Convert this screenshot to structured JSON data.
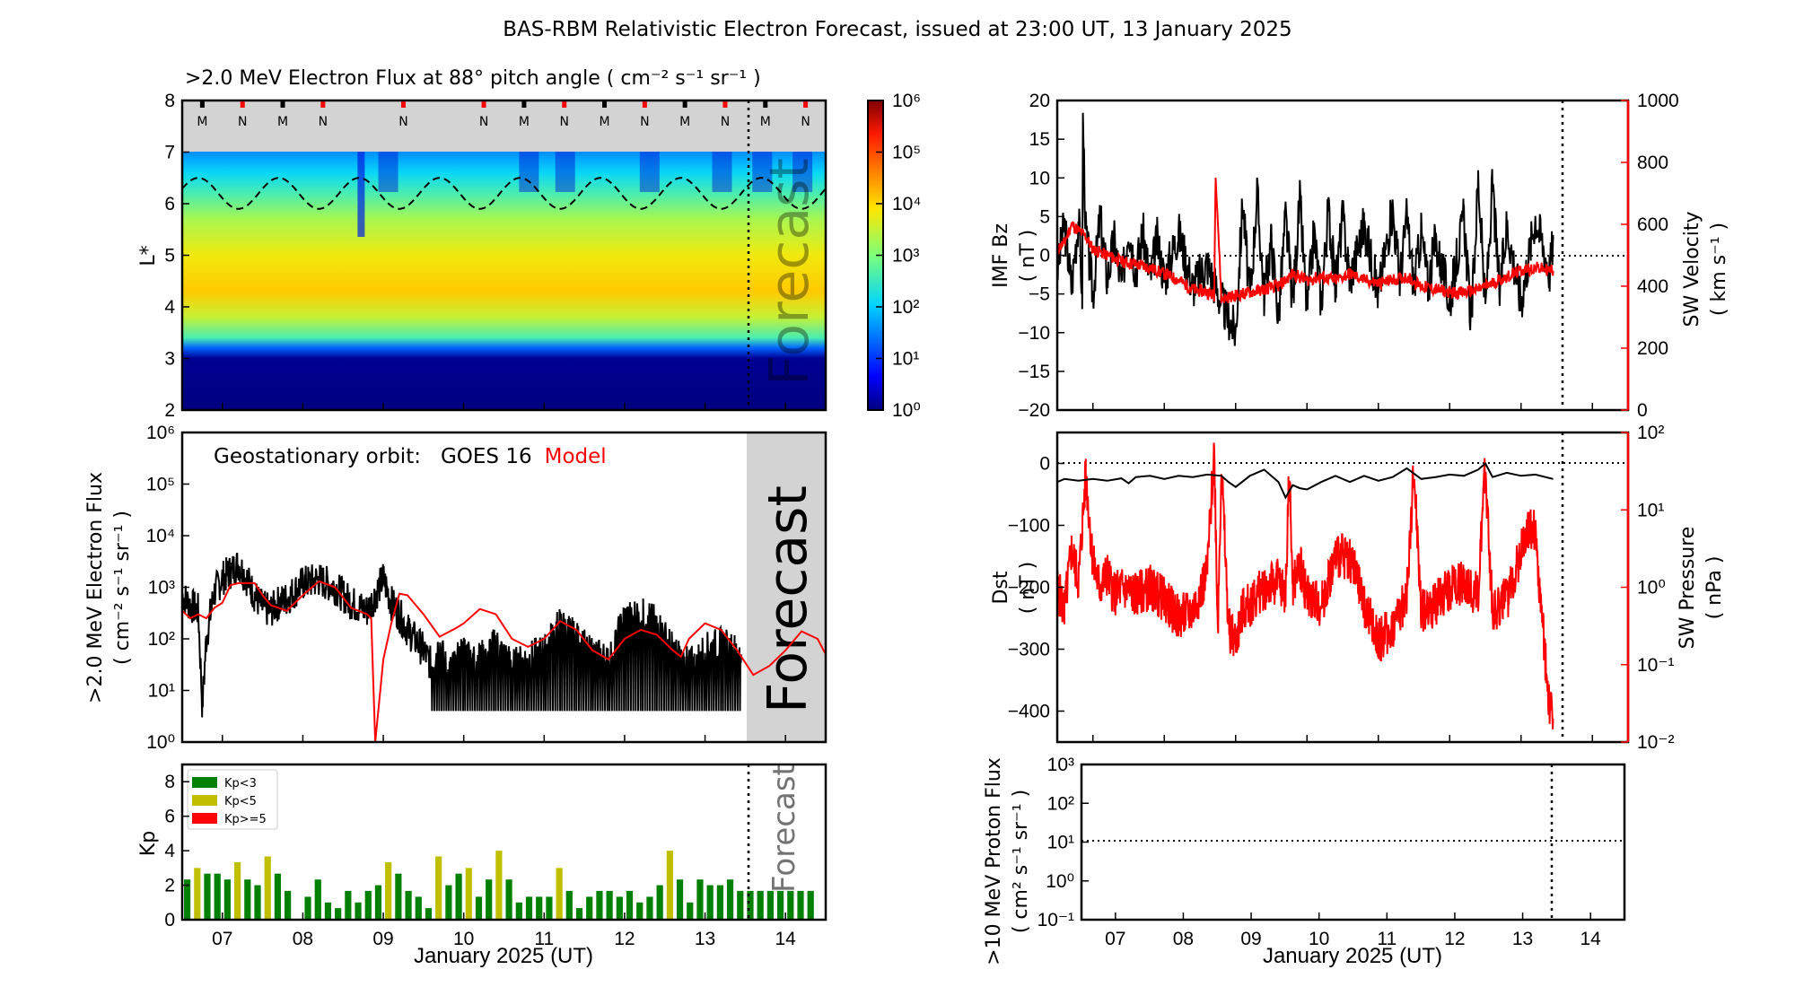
{
  "title": "BAS-RBM Relativistic Electron Forecast, issued at 23:00 UT, 13 January 2025",
  "x_axis": {
    "label": "January 2025 (UT)",
    "range_days": [
      6.5,
      14.5
    ],
    "ticks": [
      "07",
      "08",
      "09",
      "10",
      "11",
      "12",
      "13",
      "14"
    ],
    "tick_values": [
      7,
      8,
      9,
      10,
      11,
      12,
      13,
      14
    ],
    "forecast_start": 13.458
  },
  "colors": {
    "black": "#000000",
    "red": "#ff0000",
    "kp_green": "#008000",
    "kp_yellow": "#bfbf00",
    "kp_red": "#ff0000",
    "forecast_gray": "#d3d3d3",
    "forecast_text": "#a9a9a9"
  },
  "chart_data": [
    {
      "id": "lstar-flux",
      "type": "heatmap",
      "title": ">2.0 MeV Electron Flux at 88° pitch angle ( cm⁻² s⁻¹ sr⁻¹ )",
      "ylabel": "L*",
      "ylim": [
        2,
        8
      ],
      "yticks": [
        "2",
        "3",
        "4",
        "5",
        "6",
        "7",
        "8"
      ],
      "colorbar": {
        "scale": "log",
        "range": [
          1,
          1000000
        ],
        "ticks": [
          "10⁰",
          "10¹",
          "10²",
          "10³",
          "10⁴",
          "10⁵",
          "10⁶"
        ],
        "colormap": "jet"
      },
      "flux_profile_log10": [
        {
          "L": 2.0,
          "v": 0.0
        },
        {
          "L": 3.0,
          "v": 0.1
        },
        {
          "L": 3.2,
          "v": 1.3
        },
        {
          "L": 3.4,
          "v": 2.6
        },
        {
          "L": 3.8,
          "v": 3.5
        },
        {
          "L": 4.3,
          "v": 4.1
        },
        {
          "L": 5.0,
          "v": 3.8
        },
        {
          "L": 5.7,
          "v": 3.3
        },
        {
          "L": 6.2,
          "v": 2.6
        },
        {
          "L": 6.6,
          "v": 2.1
        },
        {
          "L": 7.0,
          "v": 1.6
        }
      ],
      "magnetopause_dashed_line": {
        "L_min": 5.9,
        "L_max": 6.5,
        "period_days": 1.0
      },
      "orbit_markers": [
        {
          "label": "M",
          "x": 6.75
        },
        {
          "label": "N",
          "x": 7.25
        },
        {
          "label": "M",
          "x": 7.75
        },
        {
          "label": "N",
          "x": 8.25
        },
        {
          "label": "N",
          "x": 9.25
        },
        {
          "label": "N",
          "x": 10.25
        },
        {
          "label": "M",
          "x": 10.75
        },
        {
          "label": "N",
          "x": 11.25
        },
        {
          "label": "M",
          "x": 11.75
        },
        {
          "label": "N",
          "x": 12.25
        },
        {
          "label": "M",
          "x": 12.75
        },
        {
          "label": "N",
          "x": 13.25
        },
        {
          "label": "M",
          "x": 13.75
        },
        {
          "label": "N",
          "x": 14.25
        }
      ],
      "no_data_region": {
        "L_from": 7,
        "L_to": 8
      },
      "forecast_label": "Forecast"
    },
    {
      "id": "geo-flux",
      "type": "line",
      "title": "",
      "annotation": {
        "prefix": "Geostationary orbit:",
        "series1": "GOES 16",
        "series2": "Model"
      },
      "ylabel": ">2.0 MeV Electron Flux",
      "ylabel2": "( cm⁻² s⁻¹ sr⁻¹ )",
      "yscale": "log",
      "ylim": [
        1,
        1000000
      ],
      "yticks": [
        "10⁰",
        "10¹",
        "10²",
        "10³",
        "10⁴",
        "10⁵",
        "10⁶"
      ],
      "forecast_label": "Forecast",
      "series": [
        {
          "name": "GOES 16",
          "color": "#000000",
          "x": [
            6.5,
            6.6,
            6.7,
            6.75,
            6.8,
            6.85,
            6.9,
            7.0,
            7.1,
            7.2,
            7.3,
            7.4,
            7.5,
            7.6,
            7.7,
            7.8,
            8.0,
            8.2,
            8.4,
            8.6,
            8.8,
            8.9,
            9.0,
            9.1,
            9.2,
            9.3,
            9.5,
            9.6,
            9.7,
            9.8,
            10.0,
            10.2,
            10.4,
            10.6,
            10.8,
            11.0,
            11.2,
            11.4,
            11.6,
            11.8,
            12.0,
            12.2,
            12.4,
            12.6,
            12.8,
            13.0,
            13.2,
            13.45
          ],
          "y": [
            700,
            450,
            350,
            5,
            100,
            300,
            800,
            1500,
            2000,
            2800,
            1500,
            700,
            400,
            350,
            500,
            600,
            1200,
            1400,
            1000,
            500,
            350,
            700,
            1500,
            500,
            300,
            150,
            60,
            30,
            80,
            20,
            60,
            40,
            80,
            30,
            40,
            60,
            200,
            100,
            50,
            40,
            250,
            300,
            200,
            60,
            30,
            60,
            80,
            50
          ]
        },
        {
          "name": "Model",
          "color": "#ff0000",
          "x": [
            6.5,
            6.6,
            6.7,
            6.8,
            6.9,
            7.0,
            7.1,
            7.2,
            7.4,
            7.5,
            7.6,
            7.8,
            8.0,
            8.2,
            8.4,
            8.6,
            8.8,
            8.85,
            8.9,
            9.0,
            9.1,
            9.2,
            9.3,
            9.5,
            9.7,
            9.9,
            10.0,
            10.2,
            10.4,
            10.6,
            10.8,
            11.0,
            11.2,
            11.4,
            11.6,
            11.8,
            12.0,
            12.2,
            12.4,
            12.6,
            12.7,
            12.8,
            13.0,
            13.2,
            13.4,
            13.6,
            13.8,
            14.0,
            14.2,
            14.4,
            14.5
          ],
          "y": [
            350,
            250,
            300,
            250,
            400,
            500,
            1100,
            1200,
            1200,
            700,
            450,
            350,
            700,
            1300,
            1000,
            400,
            300,
            250,
            1,
            40,
            200,
            750,
            700,
            300,
            110,
            160,
            200,
            380,
            300,
            100,
            70,
            100,
            220,
            150,
            60,
            40,
            100,
            150,
            120,
            60,
            45,
            100,
            200,
            150,
            60,
            20,
            30,
            60,
            140,
            100,
            50
          ]
        }
      ]
    },
    {
      "id": "kp",
      "type": "bar",
      "ylabel": "Kp",
      "ylim": [
        0,
        9
      ],
      "yticks": [
        "0",
        "2",
        "4",
        "6",
        "8"
      ],
      "bin_hours": 3,
      "x_start": 6.5,
      "legend": [
        {
          "label": "Kp<3",
          "color": "#008000"
        },
        {
          "label": "Kp<5",
          "color": "#bfbf00"
        },
        {
          "label": "Kp>=5",
          "color": "#ff0000"
        }
      ],
      "legend_position": "top-left",
      "values": [
        2.33,
        3.0,
        2.67,
        2.67,
        2.33,
        3.33,
        2.33,
        2.0,
        3.67,
        2.67,
        1.67,
        0,
        1.33,
        2.33,
        1.0,
        0.67,
        1.67,
        1.0,
        1.67,
        2.0,
        3.33,
        2.67,
        1.67,
        1.33,
        0.67,
        3.67,
        2.0,
        2.67,
        3.0,
        1.33,
        2.33,
        4.0,
        2.33,
        1.0,
        1.33,
        1.33,
        1.33,
        3.0,
        1.67,
        0.67,
        1.33,
        1.67,
        1.67,
        1.33,
        1.67,
        1.0,
        1.33,
        2.0,
        4.0,
        2.33,
        1.0,
        2.33,
        2.0,
        2.0,
        2.33,
        1.67,
        1.67,
        1.67,
        1.67,
        1.67,
        1.67,
        1.67,
        1.67
      ],
      "forecast_label": "Forecast"
    },
    {
      "id": "imf-sw",
      "type": "line",
      "ylabel": "IMF Bz",
      "ylabel_unit": "( nT )",
      "ylim": [
        -20,
        20
      ],
      "yticks": [
        "−20",
        "−15",
        "−10",
        "−5",
        "0",
        "5",
        "10",
        "15",
        "20"
      ],
      "y2label": "SW Velocity",
      "y2label_unit": "( km s⁻¹ )",
      "y2lim": [
        0,
        1000
      ],
      "y2ticks": [
        "0",
        "200",
        "400",
        "600",
        "800",
        "1000"
      ],
      "series": [
        {
          "name": "IMF Bz",
          "color": "#000000",
          "axis": "left",
          "x": [
            6.5,
            6.6,
            6.7,
            6.8,
            6.85,
            6.86,
            6.9,
            7.0,
            7.1,
            7.2,
            7.3,
            7.4,
            7.5,
            7.6,
            7.7,
            7.8,
            7.9,
            8.0,
            8.2,
            8.4,
            8.6,
            8.8,
            8.9,
            9.0,
            9.1,
            9.2,
            9.3,
            9.4,
            9.5,
            9.6,
            9.7,
            9.8,
            9.9,
            10.0,
            10.1,
            10.2,
            10.3,
            10.4,
            10.5,
            10.6,
            10.8,
            11.0,
            11.2,
            11.3,
            11.4,
            11.5,
            11.6,
            11.7,
            11.8,
            12.0,
            12.2,
            12.3,
            12.4,
            12.5,
            12.6,
            12.7,
            12.8,
            13.0,
            13.2,
            13.4,
            13.45
          ],
          "y": [
            -2,
            4,
            -4,
            5,
            -5,
            18,
            3,
            -5,
            5,
            -3,
            2,
            -4,
            4,
            -2,
            3,
            -3,
            2,
            -3,
            3,
            -4,
            -1,
            -6,
            -8,
            -10,
            7,
            -6,
            8,
            -5,
            2,
            -8,
            5,
            -6,
            7,
            -7,
            3,
            -6,
            6,
            -4,
            5,
            -3,
            4,
            -5,
            6,
            -3,
            5,
            -4,
            3,
            -4,
            2,
            -6,
            5,
            -9,
            10,
            -7,
            9,
            -5,
            4,
            -6,
            5,
            -2,
            2
          ]
        },
        {
          "name": "SW Velocity",
          "color": "#ff0000",
          "axis": "right",
          "x": [
            6.5,
            6.6,
            6.7,
            6.8,
            6.9,
            7.0,
            7.2,
            7.4,
            7.6,
            7.8,
            8.0,
            8.2,
            8.4,
            8.6,
            8.7,
            8.72,
            8.8,
            9.0,
            9.2,
            9.4,
            9.6,
            9.8,
            10.0,
            10.2,
            10.4,
            10.6,
            10.8,
            11.0,
            11.2,
            11.4,
            11.6,
            11.8,
            12.0,
            12.2,
            12.4,
            12.6,
            12.8,
            13.0,
            13.2,
            13.45
          ],
          "y": [
            520,
            540,
            600,
            580,
            560,
            520,
            500,
            480,
            470,
            460,
            440,
            420,
            390,
            380,
            370,
            770,
            360,
            370,
            380,
            390,
            400,
            440,
            420,
            430,
            420,
            440,
            420,
            410,
            420,
            430,
            400,
            390,
            380,
            380,
            390,
            410,
            430,
            450,
            460,
            450
          ]
        }
      ],
      "reference_line": {
        "axis": "left",
        "y": 0,
        "style": "dotted"
      }
    },
    {
      "id": "dst-pressure",
      "type": "line",
      "ylabel": "Dst",
      "ylabel_unit": "( nT )",
      "ylim": [
        -450,
        50
      ],
      "yticks": [
        "−400",
        "−300",
        "−200",
        "−100",
        "0"
      ],
      "y2label": "SW Pressure",
      "y2label_unit": "( nPa )",
      "y2scale": "log",
      "y2lim": [
        0.01,
        100
      ],
      "y2ticks": [
        "10⁻²",
        "10⁻¹",
        "10⁰",
        "10¹",
        "10²"
      ],
      "series": [
        {
          "name": "Dst",
          "color": "#000000",
          "axis": "left",
          "x": [
            6.5,
            6.6,
            6.8,
            7.0,
            7.2,
            7.4,
            7.5,
            7.6,
            7.8,
            8.0,
            8.2,
            8.4,
            8.6,
            8.8,
            8.9,
            9.0,
            9.2,
            9.4,
            9.6,
            9.7,
            9.8,
            9.9,
            10.0,
            10.2,
            10.4,
            10.6,
            10.8,
            11.0,
            11.2,
            11.4,
            11.6,
            11.8,
            12.0,
            12.2,
            12.4,
            12.5,
            12.6,
            12.8,
            13.0,
            13.2,
            13.45
          ],
          "y": [
            -30,
            -25,
            -28,
            -25,
            -28,
            -24,
            -32,
            -22,
            -20,
            -25,
            -20,
            -22,
            -18,
            -20,
            -30,
            -38,
            -20,
            -10,
            -30,
            -55,
            -35,
            -40,
            -42,
            -30,
            -20,
            -30,
            -20,
            -28,
            -22,
            -8,
            -25,
            -22,
            -18,
            -20,
            -10,
            0,
            -22,
            -15,
            -20,
            -18,
            -25
          ]
        },
        {
          "name": "SW Pressure",
          "color": "#ff0000",
          "axis": "right",
          "x": [
            6.5,
            6.6,
            6.7,
            6.8,
            6.9,
            7.0,
            7.1,
            7.2,
            7.3,
            7.4,
            7.6,
            7.8,
            8.0,
            8.2,
            8.4,
            8.6,
            8.7,
            8.75,
            8.8,
            8.9,
            9.0,
            9.1,
            9.2,
            9.4,
            9.6,
            9.7,
            9.75,
            9.8,
            9.9,
            10.0,
            10.2,
            10.4,
            10.6,
            10.8,
            11.0,
            11.2,
            11.4,
            11.5,
            11.6,
            11.8,
            12.0,
            12.2,
            12.4,
            12.5,
            12.6,
            12.8,
            13.0,
            13.1,
            13.2,
            13.3,
            13.4,
            13.45
          ],
          "y": [
            1.0,
            0.5,
            3,
            1.2,
            30,
            2,
            1,
            1.5,
            0.8,
            1.0,
            0.8,
            1.0,
            0.7,
            0.4,
            0.5,
            1.5,
            60,
            0.3,
            40,
            0.3,
            0.2,
            0.5,
            0.6,
            1.0,
            1.2,
            0.8,
            35,
            1.0,
            2,
            0.8,
            0.6,
            2.5,
            2.5,
            0.6,
            0.2,
            0.3,
            0.8,
            35,
            0.5,
            0.6,
            1.0,
            1.2,
            0.8,
            35,
            0.5,
            0.7,
            3,
            6,
            5,
            0.3,
            0.03,
            0.02
          ]
        }
      ],
      "reference_line": {
        "axis": "left",
        "y": 0,
        "style": "dotted"
      }
    },
    {
      "id": "proton-flux",
      "type": "line",
      "ylabel": ">10 MeV Proton Flux",
      "ylabel_unit": "( cm² s⁻¹ sr⁻¹ )",
      "yscale": "log",
      "ylim": [
        0.1,
        1000
      ],
      "yticks": [
        "10⁻¹",
        "10⁰",
        "10¹",
        "10²",
        "10³"
      ],
      "series": [],
      "reference_line": {
        "axis": "left",
        "y": 10,
        "style": "dotted"
      }
    }
  ]
}
